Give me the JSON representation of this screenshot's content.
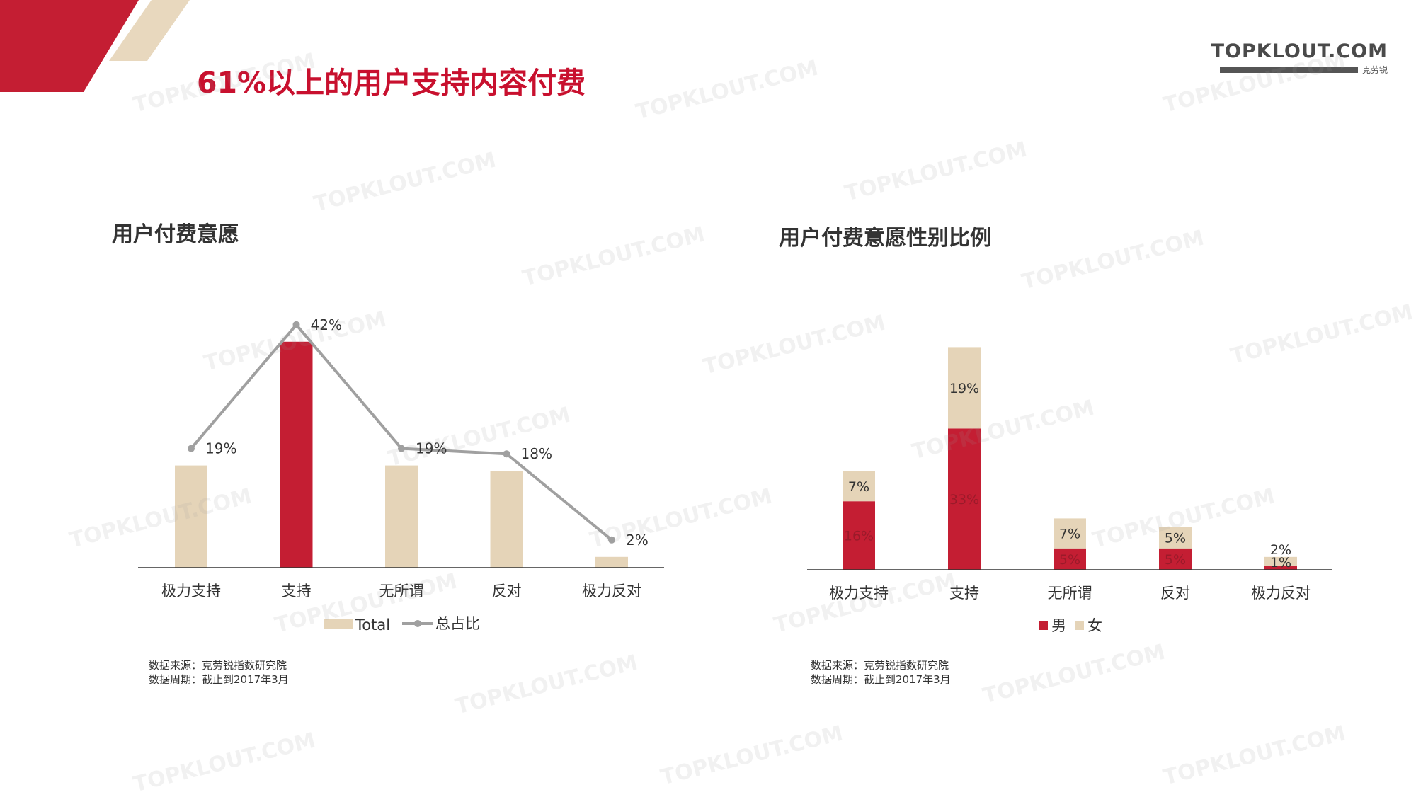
{
  "logo": {
    "main": "TOPKLOUT.COM",
    "cn": "克劳锐"
  },
  "title": "61%以上的用户支持内容付费",
  "colors": {
    "red": "#c41e33",
    "beige": "#e5d4b8",
    "line": "#a0a0a0",
    "title_red": "#c8102e"
  },
  "watermark": "TOPKLOUT.COM",
  "chart_data": [
    {
      "type": "bar",
      "title": "用户付费意愿",
      "categories": [
        "极力支持",
        "支持",
        "无所谓",
        "反对",
        "极力反对"
      ],
      "series": [
        {
          "name": "Total",
          "type": "bar",
          "values": [
            19,
            42,
            19,
            18,
            2
          ]
        },
        {
          "name": "总占比",
          "type": "line",
          "values": [
            19,
            42,
            19,
            18,
            2
          ]
        }
      ],
      "data_labels": [
        "19%",
        "42%",
        "19%",
        "18%",
        "2%"
      ],
      "highlight_index": 1,
      "ylim": [
        0,
        42
      ],
      "legend": "bottom"
    },
    {
      "type": "bar",
      "stacked": true,
      "title": "用户付费意愿性别比例",
      "categories": [
        "极力支持",
        "支持",
        "无所谓",
        "反对",
        "极力反对"
      ],
      "series": [
        {
          "name": "男",
          "values": [
            16,
            33,
            5,
            5,
            1
          ],
          "labels": [
            "16%",
            "33%",
            "5%",
            "5%",
            "1%"
          ]
        },
        {
          "name": "女",
          "values": [
            7,
            19,
            7,
            5,
            2
          ],
          "labels": [
            "7%",
            "19%",
            "7%",
            "5%",
            "2%"
          ]
        }
      ],
      "ylim": [
        0,
        52
      ],
      "legend": "bottom"
    }
  ],
  "notes": {
    "left": [
      "数据来源：克劳锐指数研究院",
      "数据周期：截止到2017年3月"
    ],
    "right": [
      "数据来源：克劳锐指数研究院",
      "数据周期：截止到2017年3月"
    ]
  }
}
